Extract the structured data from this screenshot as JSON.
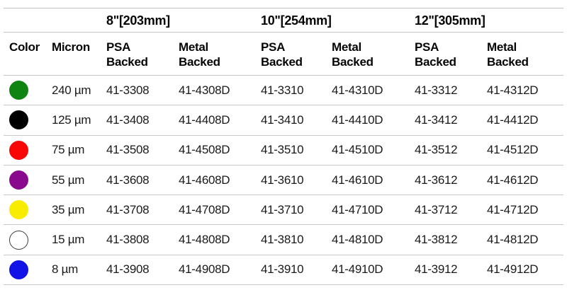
{
  "table": {
    "groups": [
      {
        "label": "8\"[203mm]"
      },
      {
        "label": "10\"[254mm]"
      },
      {
        "label": "12\"[305mm]"
      }
    ],
    "headers": {
      "color": "Color",
      "micron": "Micron",
      "psa_line1": "PSA",
      "metal_line1": "Metal",
      "line2": "Backed"
    },
    "rows": [
      {
        "color_name": "green",
        "swatch_hex": "#0f8412",
        "swatch_border_hex": "#0f8412",
        "micron": "240 µm",
        "parts": [
          "41-3308",
          "41-4308D",
          "41-3310",
          "41-4310D",
          "41-3312",
          "41-4312D"
        ]
      },
      {
        "color_name": "black",
        "swatch_hex": "#000000",
        "swatch_border_hex": "#000000",
        "micron": "125 µm",
        "parts": [
          "41-3408",
          "41-4408D",
          "41-3410",
          "41-4410D",
          "41-3412",
          "41-4412D"
        ]
      },
      {
        "color_name": "red",
        "swatch_hex": "#f90606",
        "swatch_border_hex": "#f90606",
        "micron": "75 µm",
        "parts": [
          "41-3508",
          "41-4508D",
          "41-3510",
          "41-4510D",
          "41-3512",
          "41-4512D"
        ]
      },
      {
        "color_name": "purple",
        "swatch_hex": "#8a0a8d",
        "swatch_border_hex": "#8a0a8d",
        "micron": "55 µm",
        "parts": [
          "41-3608",
          "41-4608D",
          "41-3610",
          "41-4610D",
          "41-3612",
          "41-4612D"
        ]
      },
      {
        "color_name": "yellow",
        "swatch_hex": "#f8ec00",
        "swatch_border_hex": "#f8ec00",
        "micron": "35 µm",
        "parts": [
          "41-3708",
          "41-4708D",
          "41-3710",
          "41-4710D",
          "41-3712",
          "41-4712D"
        ]
      },
      {
        "color_name": "white",
        "swatch_hex": "#ffffff",
        "swatch_border_hex": "#3c3c3c",
        "micron": "15 µm",
        "parts": [
          "41-3808",
          "41-4808D",
          "41-3810",
          "41-4810D",
          "41-3812",
          "41-4812D"
        ]
      },
      {
        "color_name": "blue",
        "swatch_hex": "#1313e8",
        "swatch_border_hex": "#1313e8",
        "micron": "8 µm",
        "parts": [
          "41-3908",
          "41-4908D",
          "41-3910",
          "41-4910D",
          "41-3912",
          "41-4912D"
        ]
      }
    ]
  }
}
